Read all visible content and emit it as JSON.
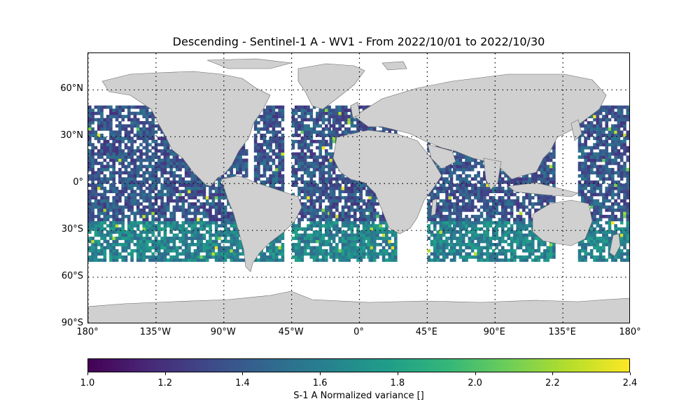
{
  "title": "Descending - Sentinel-1 A - WV1 - From 2022/10/01 to 2022/10/30",
  "map": {
    "projection": "PlateCarree",
    "lon_range": [
      -180,
      180
    ],
    "lat_range": [
      -90,
      90
    ],
    "gridlines": "dotted",
    "land_color": "#d0d0d0",
    "lat_ticks": [
      {
        "value": 60,
        "label": "60°N"
      },
      {
        "value": 30,
        "label": "30°N"
      },
      {
        "value": 0,
        "label": "0°"
      },
      {
        "value": -30,
        "label": "30°S"
      },
      {
        "value": -60,
        "label": "60°S"
      },
      {
        "value": -90,
        "label": "90°S"
      }
    ],
    "lon_ticks": [
      {
        "value": -180,
        "label": "180°"
      },
      {
        "value": -135,
        "label": "135°W"
      },
      {
        "value": -90,
        "label": "90°W"
      },
      {
        "value": -45,
        "label": "45°W"
      },
      {
        "value": 0,
        "label": "0°"
      },
      {
        "value": 45,
        "label": "45°E"
      },
      {
        "value": 90,
        "label": "90°E"
      },
      {
        "value": 135,
        "label": "135°E"
      },
      {
        "value": 180,
        "label": "180°"
      }
    ],
    "data_lat_range": [
      -50,
      50
    ],
    "swaths_lon_ranges": [
      [
        -180,
        -120
      ],
      [
        -120,
        -75
      ],
      [
        -70,
        -50
      ],
      [
        -45,
        -20
      ],
      [
        -20,
        10
      ],
      [
        5,
        25
      ],
      [
        45,
        60
      ],
      [
        60,
        80
      ],
      [
        80,
        110
      ],
      [
        110,
        130
      ],
      [
        145,
        180
      ]
    ]
  },
  "colorbar": {
    "colormap": "viridis",
    "range": [
      1.0,
      2.4
    ],
    "ticks": [
      "1.0",
      "1.2",
      "1.4",
      "1.6",
      "1.8",
      "2.0",
      "2.2",
      "2.4"
    ],
    "label": "S-1 A Normalized variance []",
    "stops": [
      "#440154",
      "#482878",
      "#3e4989",
      "#31688e",
      "#26828e",
      "#1f9e89",
      "#35b779",
      "#6ece58",
      "#b5de2b",
      "#fde725"
    ]
  }
}
